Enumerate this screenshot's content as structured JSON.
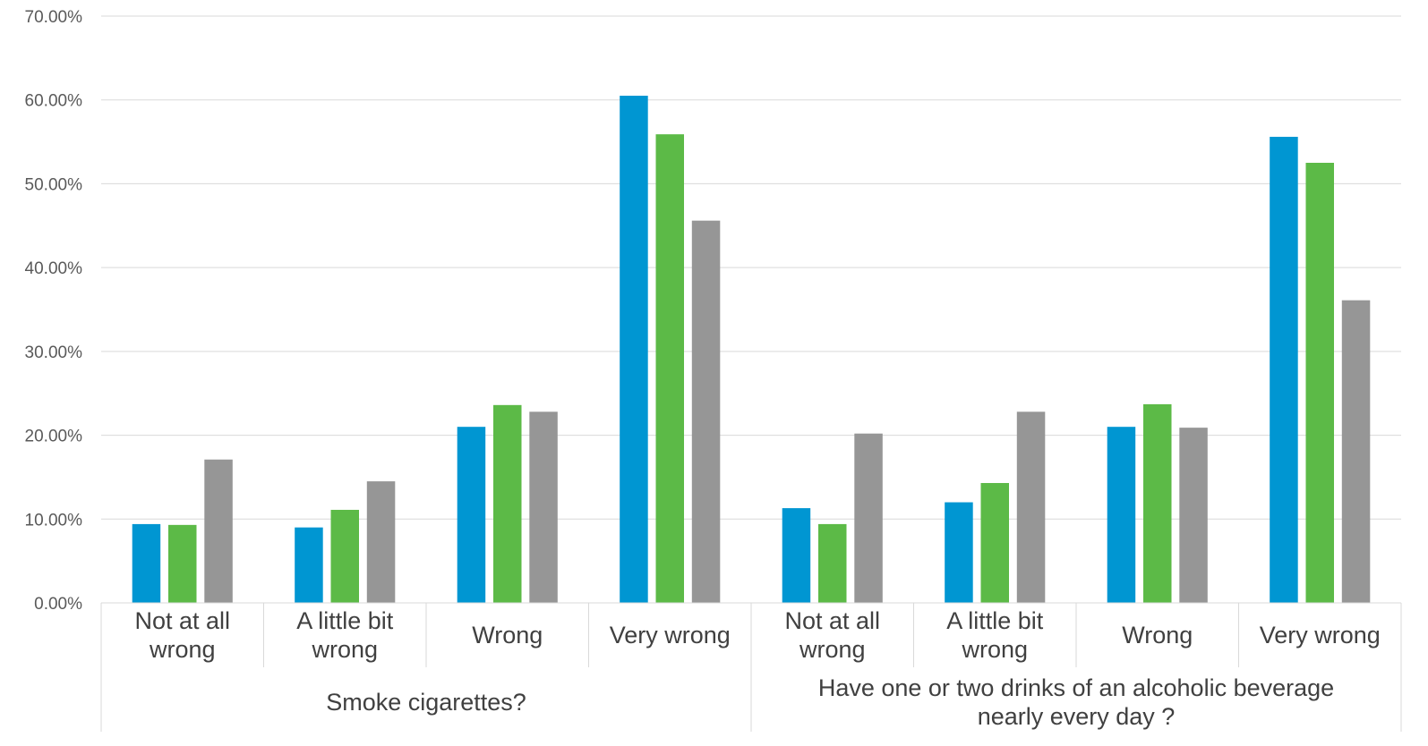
{
  "chart_data": {
    "type": "bar",
    "title": "",
    "xlabel": "",
    "ylabel": "",
    "ylim": [
      0,
      0.7
    ],
    "ytick_values": [
      0,
      0.1,
      0.2,
      0.3,
      0.4,
      0.5,
      0.6,
      0.7
    ],
    "ytick_labels": [
      "0.00%",
      "10.00%",
      "20.00%",
      "30.00%",
      "40.00%",
      "50.00%",
      "60.00%",
      "70.00%"
    ],
    "grid": true,
    "legend": null,
    "groups": [
      {
        "label": "Smoke cigarettes?",
        "categories": [
          "Not at all wrong",
          "A little bit wrong",
          "Wrong",
          "Very wrong"
        ]
      },
      {
        "label": "Have one or two drinks of an alcoholic beverage nearly every day ?",
        "categories": [
          "Not at all wrong",
          "A little bit wrong",
          "Wrong",
          "Very wrong"
        ]
      }
    ],
    "series": [
      {
        "color": "#0096d2",
        "values": [
          0.094,
          0.09,
          0.21,
          0.605,
          0.113,
          0.12,
          0.21,
          0.556
        ]
      },
      {
        "color": "#5cba47",
        "values": [
          0.093,
          0.111,
          0.236,
          0.559,
          0.094,
          0.143,
          0.237,
          0.525
        ]
      },
      {
        "color": "#969696",
        "values": [
          0.171,
          0.145,
          0.228,
          0.456,
          0.202,
          0.228,
          0.209,
          0.361
        ]
      }
    ]
  }
}
